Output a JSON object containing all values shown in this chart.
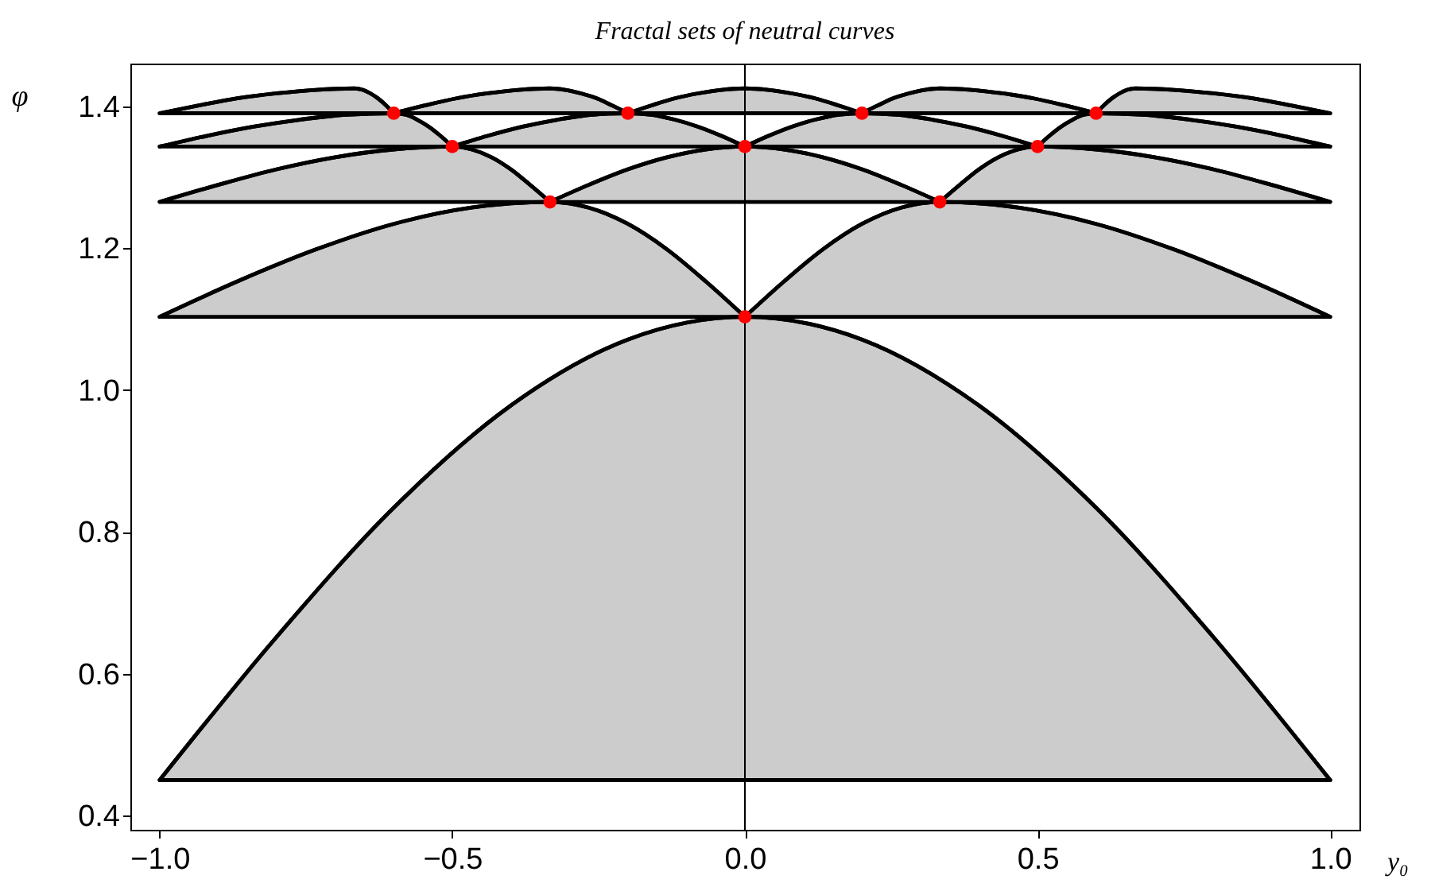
{
  "chart_data": {
    "type": "line",
    "title": "Fractal sets of neutral curves",
    "xlabel": "y₀",
    "ylabel": "φ",
    "xlim": [
      -1.05,
      1.05
    ],
    "ylim": [
      0.38,
      1.46
    ],
    "xticks": [
      {
        "value": -1,
        "label": "−1.0"
      },
      {
        "value": -0.5,
        "label": "−0.5"
      },
      {
        "value": 0,
        "label": "0.0"
      },
      {
        "value": 0.5,
        "label": "0.5"
      },
      {
        "value": 1,
        "label": "1.0"
      }
    ],
    "yticks": [
      {
        "value": 0.4,
        "label": "0.4"
      },
      {
        "value": 0.6,
        "label": "0.6"
      },
      {
        "value": 0.8,
        "label": "0.8"
      },
      {
        "value": 1,
        "label": "1.0"
      },
      {
        "value": 1.2,
        "label": "1.2"
      },
      {
        "value": 1.4,
        "label": "1.4"
      }
    ],
    "ref_lines": [
      {
        "axis": "x",
        "value": 0,
        "color": "#000000"
      }
    ],
    "series": [
      {
        "color": "#000000",
        "x": [
          -1,
          -0.8,
          -0.6,
          -0.4,
          -0.2,
          0,
          0.2,
          0.4,
          0.6,
          0.8,
          1
        ],
        "values": [
          0.45,
          0.652,
          0.834,
          0.978,
          1.071,
          1.103,
          1.071,
          0.978,
          0.834,
          0.652,
          0.45
        ],
        "upper": [
          0.45,
          0.652,
          0.834,
          0.978,
          1.071,
          1.103,
          1.071,
          0.978,
          0.834,
          0.652,
          0.45
        ],
        "lower": [
          0.45,
          0.45,
          0.45,
          0.45,
          0.45,
          0.45,
          0.45,
          0.45,
          0.45,
          0.45,
          0.45
        ]
      },
      {
        "color": "#000000",
        "x": [
          -1,
          -0.867,
          -0.733,
          -0.6,
          -0.467,
          -0.333,
          -0.267,
          -0.2,
          -0.133,
          -0.067,
          0
        ],
        "values": [
          1.103,
          1.153,
          1.198,
          1.234,
          1.257,
          1.265,
          1.257,
          1.234,
          1.198,
          1.153,
          1.103
        ],
        "upper": [
          1.103,
          1.153,
          1.198,
          1.234,
          1.257,
          1.265,
          1.257,
          1.234,
          1.198,
          1.153,
          1.103
        ],
        "lower": [
          1.103,
          1.103,
          1.103,
          1.103,
          1.103,
          1.103,
          1.103,
          1.103,
          1.103,
          1.103,
          1.103
        ]
      },
      {
        "color": "#000000",
        "x": [
          0,
          0.067,
          0.133,
          0.2,
          0.267,
          0.333,
          0.467,
          0.6,
          0.733,
          0.867,
          1
        ],
        "values": [
          1.103,
          1.153,
          1.198,
          1.234,
          1.257,
          1.265,
          1.257,
          1.234,
          1.198,
          1.153,
          1.103
        ],
        "upper": [
          1.103,
          1.153,
          1.198,
          1.234,
          1.257,
          1.265,
          1.257,
          1.234,
          1.198,
          1.153,
          1.103
        ],
        "lower": [
          1.103,
          1.103,
          1.103,
          1.103,
          1.103,
          1.103,
          1.103,
          1.103,
          1.103,
          1.103,
          1.103
        ]
      },
      {
        "color": "#000000",
        "x": [
          -1,
          -0.9,
          -0.8,
          -0.7,
          -0.6,
          -0.5,
          -0.467,
          -0.433,
          -0.4,
          -0.367,
          -0.333
        ],
        "values": [
          1.265,
          1.289,
          1.311,
          1.328,
          1.339,
          1.343,
          1.339,
          1.328,
          1.311,
          1.289,
          1.265
        ],
        "upper": [
          1.265,
          1.289,
          1.311,
          1.328,
          1.339,
          1.343,
          1.339,
          1.328,
          1.311,
          1.289,
          1.265
        ],
        "lower": [
          1.265,
          1.265,
          1.265,
          1.265,
          1.265,
          1.265,
          1.265,
          1.265,
          1.265,
          1.265,
          1.265
        ]
      },
      {
        "color": "#000000",
        "x": [
          -0.333,
          -0.267,
          -0.2,
          -0.133,
          -0.067,
          0,
          0.067,
          0.133,
          0.2,
          0.267,
          0.333
        ],
        "values": [
          1.265,
          1.289,
          1.311,
          1.328,
          1.339,
          1.343,
          1.339,
          1.328,
          1.311,
          1.289,
          1.265
        ],
        "upper": [
          1.265,
          1.289,
          1.311,
          1.328,
          1.339,
          1.343,
          1.339,
          1.328,
          1.311,
          1.289,
          1.265
        ],
        "lower": [
          1.265,
          1.265,
          1.265,
          1.265,
          1.265,
          1.265,
          1.265,
          1.265,
          1.265,
          1.265,
          1.265
        ]
      },
      {
        "color": "#000000",
        "x": [
          0.333,
          0.367,
          0.4,
          0.433,
          0.467,
          0.5,
          0.6,
          0.7,
          0.8,
          0.9,
          1
        ],
        "values": [
          1.265,
          1.289,
          1.311,
          1.328,
          1.339,
          1.343,
          1.339,
          1.328,
          1.311,
          1.289,
          1.265
        ],
        "upper": [
          1.265,
          1.289,
          1.311,
          1.328,
          1.339,
          1.343,
          1.339,
          1.328,
          1.311,
          1.289,
          1.265
        ],
        "lower": [
          1.265,
          1.265,
          1.265,
          1.265,
          1.265,
          1.265,
          1.265,
          1.265,
          1.265,
          1.265,
          1.265
        ]
      },
      {
        "color": "#000000",
        "x": [
          -1,
          -0.92,
          -0.84,
          -0.76,
          -0.68,
          -0.6,
          -0.58,
          -0.56,
          -0.54,
          -0.52,
          -0.5
        ],
        "values": [
          1.343,
          1.358,
          1.371,
          1.381,
          1.388,
          1.39,
          1.388,
          1.381,
          1.371,
          1.358,
          1.343
        ],
        "upper": [
          1.343,
          1.358,
          1.371,
          1.381,
          1.388,
          1.39,
          1.388,
          1.381,
          1.371,
          1.358,
          1.343
        ],
        "lower": [
          1.343,
          1.343,
          1.343,
          1.343,
          1.343,
          1.343,
          1.343,
          1.343,
          1.343,
          1.343,
          1.343
        ]
      },
      {
        "color": "#000000",
        "x": [
          -0.5,
          -0.44,
          -0.38,
          -0.32,
          -0.26,
          -0.2,
          -0.16,
          -0.12,
          -0.08,
          -0.04,
          0
        ],
        "values": [
          1.343,
          1.358,
          1.371,
          1.381,
          1.388,
          1.39,
          1.388,
          1.381,
          1.371,
          1.358,
          1.343
        ],
        "upper": [
          1.343,
          1.358,
          1.371,
          1.381,
          1.388,
          1.39,
          1.388,
          1.381,
          1.371,
          1.358,
          1.343
        ],
        "lower": [
          1.343,
          1.343,
          1.343,
          1.343,
          1.343,
          1.343,
          1.343,
          1.343,
          1.343,
          1.343,
          1.343
        ]
      },
      {
        "color": "#000000",
        "x": [
          0,
          0.04,
          0.08,
          0.12,
          0.16,
          0.2,
          0.26,
          0.32,
          0.38,
          0.44,
          0.5
        ],
        "values": [
          1.343,
          1.358,
          1.371,
          1.381,
          1.388,
          1.39,
          1.388,
          1.381,
          1.371,
          1.358,
          1.343
        ],
        "upper": [
          1.343,
          1.358,
          1.371,
          1.381,
          1.388,
          1.39,
          1.388,
          1.381,
          1.371,
          1.358,
          1.343
        ],
        "lower": [
          1.343,
          1.343,
          1.343,
          1.343,
          1.343,
          1.343,
          1.343,
          1.343,
          1.343,
          1.343,
          1.343
        ]
      },
      {
        "color": "#000000",
        "x": [
          0.5,
          0.52,
          0.54,
          0.56,
          0.58,
          0.6,
          0.68,
          0.76,
          0.84,
          0.92,
          1
        ],
        "values": [
          1.343,
          1.358,
          1.371,
          1.381,
          1.388,
          1.39,
          1.388,
          1.381,
          1.371,
          1.358,
          1.343
        ],
        "upper": [
          1.343,
          1.358,
          1.371,
          1.381,
          1.388,
          1.39,
          1.388,
          1.381,
          1.371,
          1.358,
          1.343
        ],
        "lower": [
          1.343,
          1.343,
          1.343,
          1.343,
          1.343,
          1.343,
          1.343,
          1.343,
          1.343,
          1.343,
          1.343
        ]
      },
      {
        "color": "#000000",
        "x": [
          -1,
          -0.933,
          -0.867,
          -0.8,
          -0.733,
          -0.667,
          -0.653,
          -0.64,
          -0.627,
          -0.613,
          -0.6
        ],
        "values": [
          1.39,
          1.401,
          1.411,
          1.418,
          1.423,
          1.425,
          1.423,
          1.418,
          1.411,
          1.401,
          1.39
        ],
        "upper": [
          1.39,
          1.401,
          1.411,
          1.418,
          1.423,
          1.425,
          1.423,
          1.418,
          1.411,
          1.401,
          1.39
        ],
        "lower": [
          1.39,
          1.39,
          1.39,
          1.39,
          1.39,
          1.39,
          1.39,
          1.39,
          1.39,
          1.39,
          1.39
        ]
      },
      {
        "color": "#000000",
        "x": [
          -0.6,
          -0.547,
          -0.493,
          -0.44,
          -0.387,
          -0.333,
          -0.307,
          -0.28,
          -0.253,
          -0.227,
          -0.2
        ],
        "values": [
          1.39,
          1.401,
          1.411,
          1.418,
          1.423,
          1.425,
          1.423,
          1.418,
          1.411,
          1.401,
          1.39
        ],
        "upper": [
          1.39,
          1.401,
          1.411,
          1.418,
          1.423,
          1.425,
          1.423,
          1.418,
          1.411,
          1.401,
          1.39
        ],
        "lower": [
          1.39,
          1.39,
          1.39,
          1.39,
          1.39,
          1.39,
          1.39,
          1.39,
          1.39,
          1.39,
          1.39
        ]
      },
      {
        "color": "#000000",
        "x": [
          -0.2,
          -0.16,
          -0.12,
          -0.08,
          -0.04,
          0,
          0.04,
          0.08,
          0.12,
          0.16,
          0.2
        ],
        "values": [
          1.39,
          1.401,
          1.411,
          1.418,
          1.423,
          1.425,
          1.423,
          1.418,
          1.411,
          1.401,
          1.39
        ],
        "upper": [
          1.39,
          1.401,
          1.411,
          1.418,
          1.423,
          1.425,
          1.423,
          1.418,
          1.411,
          1.401,
          1.39
        ],
        "lower": [
          1.39,
          1.39,
          1.39,
          1.39,
          1.39,
          1.39,
          1.39,
          1.39,
          1.39,
          1.39,
          1.39
        ]
      },
      {
        "color": "#000000",
        "x": [
          0.2,
          0.227,
          0.253,
          0.28,
          0.307,
          0.333,
          0.387,
          0.44,
          0.493,
          0.547,
          0.6
        ],
        "values": [
          1.39,
          1.401,
          1.411,
          1.418,
          1.423,
          1.425,
          1.423,
          1.418,
          1.411,
          1.401,
          1.39
        ],
        "upper": [
          1.39,
          1.401,
          1.411,
          1.418,
          1.423,
          1.425,
          1.423,
          1.418,
          1.411,
          1.401,
          1.39
        ],
        "lower": [
          1.39,
          1.39,
          1.39,
          1.39,
          1.39,
          1.39,
          1.39,
          1.39,
          1.39,
          1.39,
          1.39
        ]
      },
      {
        "color": "#000000",
        "x": [
          0.6,
          0.613,
          0.627,
          0.64,
          0.653,
          0.667,
          0.733,
          0.8,
          0.867,
          0.933,
          1
        ],
        "values": [
          1.39,
          1.401,
          1.411,
          1.418,
          1.423,
          1.425,
          1.423,
          1.418,
          1.411,
          1.401,
          1.39
        ],
        "upper": [
          1.39,
          1.401,
          1.411,
          1.418,
          1.423,
          1.425,
          1.423,
          1.418,
          1.411,
          1.401,
          1.39
        ],
        "lower": [
          1.39,
          1.39,
          1.39,
          1.39,
          1.39,
          1.39,
          1.39,
          1.39,
          1.39,
          1.39,
          1.39
        ]
      },
      {
        "type": "scatter",
        "color": "#ff0000",
        "marker": "circle",
        "x": [
          0,
          -0.333,
          0.333,
          -0.5,
          0,
          0.5,
          -0.6,
          -0.2,
          0.2,
          0.6
        ],
        "values": [
          1.103,
          1.265,
          1.265,
          1.343,
          1.343,
          1.343,
          1.39,
          1.39,
          1.39,
          1.39
        ]
      }
    ]
  }
}
